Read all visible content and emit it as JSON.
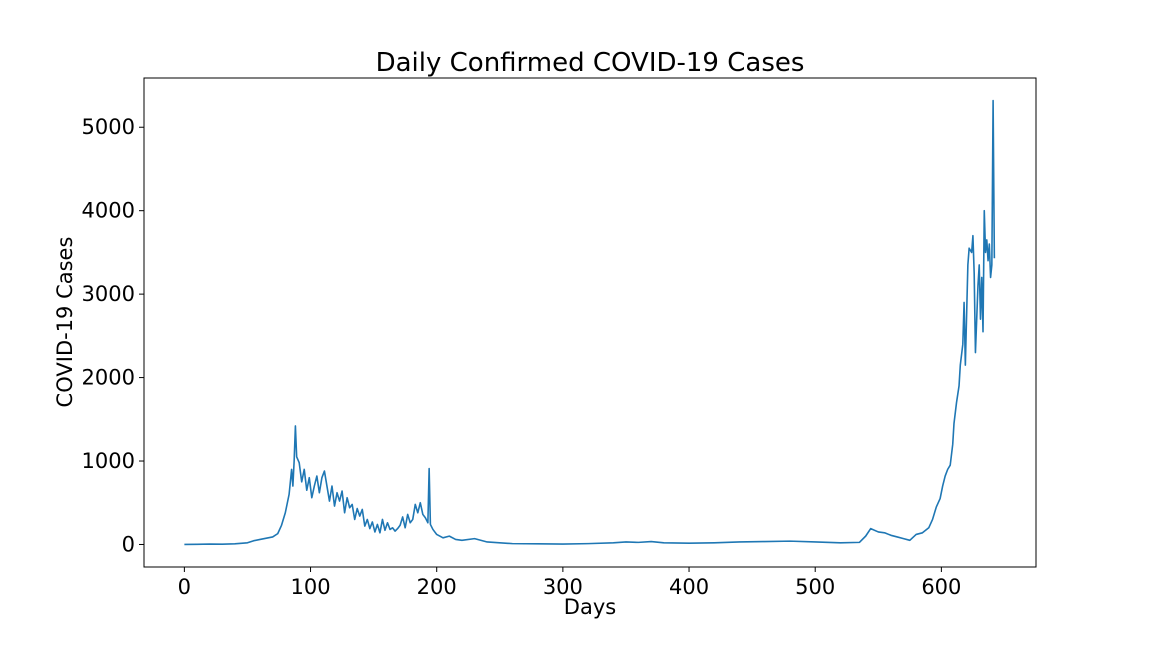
{
  "chart_data": {
    "type": "line",
    "title": "Daily Confirmed COVID-19 Cases",
    "xlabel": "Days",
    "ylabel": "COVID-19 Cases",
    "xlim": [
      -32,
      675
    ],
    "ylim": [
      -270,
      5590
    ],
    "x_ticks": [
      0,
      100,
      200,
      300,
      400,
      500,
      600
    ],
    "y_ticks": [
      0,
      1000,
      2000,
      3000,
      4000,
      5000
    ],
    "grid": false,
    "legend": "none",
    "series": [
      {
        "color": "#1f77b4",
        "points": [
          [
            0,
            0
          ],
          [
            10,
            2
          ],
          [
            20,
            5
          ],
          [
            30,
            3
          ],
          [
            40,
            8
          ],
          [
            50,
            20
          ],
          [
            55,
            45
          ],
          [
            60,
            60
          ],
          [
            65,
            75
          ],
          [
            70,
            90
          ],
          [
            74,
            130
          ],
          [
            77,
            230
          ],
          [
            80,
            380
          ],
          [
            83,
            600
          ],
          [
            85,
            900
          ],
          [
            86,
            700
          ],
          [
            87,
            1000
          ],
          [
            88,
            1420
          ],
          [
            89,
            1050
          ],
          [
            91,
            980
          ],
          [
            93,
            750
          ],
          [
            95,
            900
          ],
          [
            97,
            650
          ],
          [
            99,
            800
          ],
          [
            101,
            560
          ],
          [
            103,
            700
          ],
          [
            105,
            820
          ],
          [
            107,
            620
          ],
          [
            109,
            800
          ],
          [
            111,
            880
          ],
          [
            113,
            700
          ],
          [
            115,
            520
          ],
          [
            117,
            700
          ],
          [
            119,
            460
          ],
          [
            121,
            620
          ],
          [
            123,
            520
          ],
          [
            125,
            640
          ],
          [
            127,
            380
          ],
          [
            129,
            560
          ],
          [
            131,
            440
          ],
          [
            133,
            480
          ],
          [
            135,
            300
          ],
          [
            137,
            430
          ],
          [
            139,
            340
          ],
          [
            141,
            420
          ],
          [
            143,
            220
          ],
          [
            145,
            300
          ],
          [
            147,
            190
          ],
          [
            149,
            270
          ],
          [
            151,
            150
          ],
          [
            153,
            240
          ],
          [
            155,
            140
          ],
          [
            157,
            300
          ],
          [
            159,
            170
          ],
          [
            161,
            260
          ],
          [
            163,
            180
          ],
          [
            165,
            200
          ],
          [
            167,
            160
          ],
          [
            169,
            190
          ],
          [
            171,
            230
          ],
          [
            173,
            330
          ],
          [
            175,
            200
          ],
          [
            177,
            360
          ],
          [
            179,
            260
          ],
          [
            181,
            300
          ],
          [
            183,
            480
          ],
          [
            185,
            380
          ],
          [
            187,
            500
          ],
          [
            189,
            360
          ],
          [
            191,
            320
          ],
          [
            193,
            260
          ],
          [
            194,
            910
          ],
          [
            195,
            240
          ],
          [
            197,
            180
          ],
          [
            200,
            120
          ],
          [
            205,
            80
          ],
          [
            210,
            100
          ],
          [
            215,
            60
          ],
          [
            220,
            50
          ],
          [
            230,
            70
          ],
          [
            240,
            30
          ],
          [
            250,
            20
          ],
          [
            260,
            10
          ],
          [
            280,
            8
          ],
          [
            300,
            5
          ],
          [
            320,
            10
          ],
          [
            340,
            20
          ],
          [
            350,
            30
          ],
          [
            360,
            25
          ],
          [
            370,
            35
          ],
          [
            380,
            20
          ],
          [
            400,
            15
          ],
          [
            420,
            20
          ],
          [
            440,
            30
          ],
          [
            460,
            35
          ],
          [
            480,
            40
          ],
          [
            500,
            30
          ],
          [
            520,
            20
          ],
          [
            535,
            25
          ],
          [
            540,
            100
          ],
          [
            544,
            190
          ],
          [
            550,
            150
          ],
          [
            555,
            140
          ],
          [
            560,
            110
          ],
          [
            565,
            90
          ],
          [
            570,
            70
          ],
          [
            575,
            50
          ],
          [
            580,
            120
          ],
          [
            585,
            140
          ],
          [
            590,
            200
          ],
          [
            593,
            300
          ],
          [
            596,
            450
          ],
          [
            599,
            550
          ],
          [
            601,
            700
          ],
          [
            603,
            820
          ],
          [
            605,
            900
          ],
          [
            607,
            950
          ],
          [
            609,
            1200
          ],
          [
            610,
            1450
          ],
          [
            612,
            1700
          ],
          [
            614,
            1900
          ],
          [
            615,
            2150
          ],
          [
            617,
            2400
          ],
          [
            618,
            2900
          ],
          [
            619,
            2150
          ],
          [
            621,
            3350
          ],
          [
            622,
            3550
          ],
          [
            624,
            3500
          ],
          [
            625,
            3700
          ],
          [
            626,
            3250
          ],
          [
            627,
            2300
          ],
          [
            629,
            3100
          ],
          [
            630,
            3350
          ],
          [
            631,
            2700
          ],
          [
            632,
            3200
          ],
          [
            633,
            2550
          ],
          [
            634,
            4000
          ],
          [
            635,
            3500
          ],
          [
            636,
            3650
          ],
          [
            637,
            3400
          ],
          [
            638,
            3600
          ],
          [
            639,
            3200
          ],
          [
            640,
            3350
          ],
          [
            641,
            5320
          ],
          [
            642,
            3430
          ]
        ]
      }
    ]
  }
}
